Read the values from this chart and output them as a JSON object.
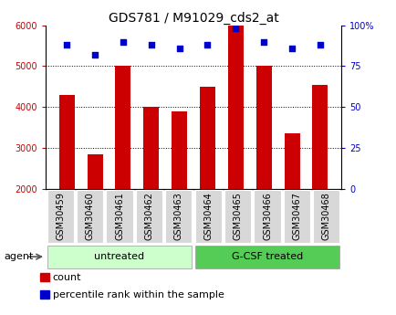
{
  "title": "GDS781 / M91029_cds2_at",
  "categories": [
    "GSM30459",
    "GSM30460",
    "GSM30461",
    "GSM30462",
    "GSM30463",
    "GSM30464",
    "GSM30465",
    "GSM30466",
    "GSM30467",
    "GSM30468"
  ],
  "counts": [
    4300,
    2850,
    5000,
    4000,
    3900,
    4500,
    6000,
    5000,
    3350,
    4550
  ],
  "percentiles": [
    88,
    82,
    90,
    88,
    86,
    88,
    98,
    90,
    86,
    88
  ],
  "bar_color": "#cc0000",
  "dot_color": "#0000cc",
  "ylim_left": [
    2000,
    6000
  ],
  "ylim_right": [
    0,
    100
  ],
  "yticks_left": [
    2000,
    3000,
    4000,
    5000,
    6000
  ],
  "yticks_right": [
    0,
    25,
    50,
    75,
    100
  ],
  "group_colors_untreated": "#ccffcc",
  "group_colors_gcsf": "#55cc55",
  "agent_label": "agent",
  "legend_count": "count",
  "legend_percentile": "percentile rank within the sample",
  "title_fontsize": 10,
  "tick_fontsize": 7,
  "label_fontsize": 8,
  "tick_label_bg": "#d8d8d8"
}
